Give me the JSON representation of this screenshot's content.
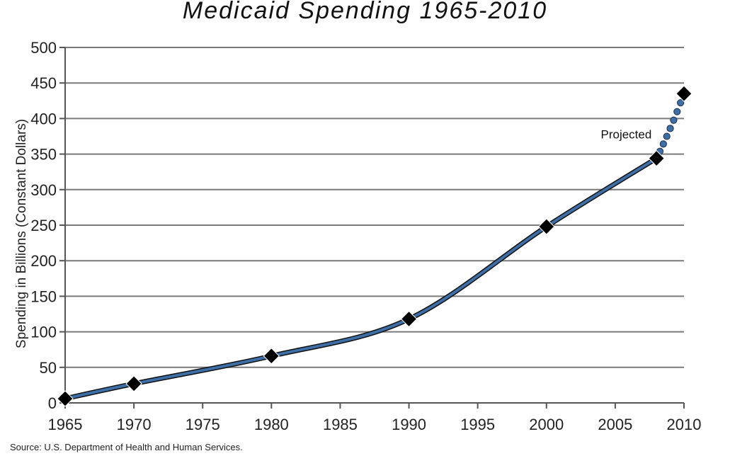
{
  "chart_data": {
    "type": "line",
    "title": "Medicaid Spending 1965-2010",
    "ylabel": "Spending in Billions (Constant Dollars)",
    "xlabel": "",
    "xlim": [
      1965,
      2010
    ],
    "ylim": [
      0,
      500
    ],
    "x_ticks": [
      1965,
      1970,
      1975,
      1980,
      1985,
      1990,
      1995,
      2000,
      2005,
      2010
    ],
    "y_ticks": [
      0,
      50,
      100,
      150,
      200,
      250,
      300,
      350,
      400,
      450,
      500
    ],
    "grid": "horizontal",
    "series": [
      {
        "style": "solid",
        "x": [
          1965,
          1970,
          1980,
          1990,
          2000,
          2008
        ],
        "y": [
          6,
          27,
          66,
          118,
          248,
          344
        ]
      },
      {
        "style": "dotted",
        "x": [
          2008,
          2010
        ],
        "y": [
          344,
          435
        ]
      }
    ],
    "annotations": [
      {
        "text": "Projected",
        "x": 2005.8,
        "y": 378
      }
    ],
    "line_color": "#3d6fa6",
    "marker_color": "#000000"
  },
  "source": "Source: U.S. Department of Health and Human Services."
}
